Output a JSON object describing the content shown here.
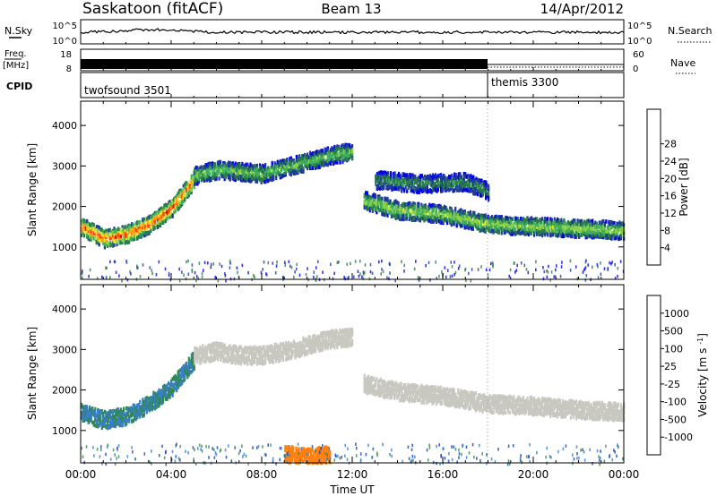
{
  "header": {
    "station": "Saskatoon (fitACF)",
    "beam": "Beam 13",
    "date": "14/Apr/2012"
  },
  "top_panels": {
    "nsky_label": "N.Sky",
    "nsky_ticks": [
      "10^5",
      "10^0"
    ],
    "nsearch_label": "N.Search",
    "nsearch_ticks": [
      "10^5",
      "10^0"
    ],
    "freq_label": "Freq.",
    "freq_unit": "[MHz]",
    "freq_ticks": [
      "18",
      "8"
    ],
    "nave_label": "Nave",
    "nave_ticks": [
      "60",
      "0"
    ],
    "cpid_label": "CPID",
    "cpid_segments": [
      {
        "name": "twofsound 3501",
        "start_h": 0,
        "end_h": 18
      },
      {
        "name": "themis 3300",
        "start_h": 18,
        "end_h": 24
      }
    ]
  },
  "chart_data": [
    {
      "type": "heatmap",
      "name": "power",
      "ylabel": "Slant Range [km]",
      "yticks": [
        1000,
        2000,
        3000,
        4000
      ],
      "ylim": [
        200,
        4600
      ],
      "xlim": [
        0,
        24
      ],
      "colorbar": {
        "label": "Power [dB]",
        "ticks": [
          "4",
          "8",
          "12",
          "16",
          "20",
          "24",
          "28"
        ],
        "colors": [
          "#0000ee",
          "#1e3a9a",
          "#2a7a4c",
          "#3cb05a",
          "#8ed04a",
          "#f5e52a",
          "#ff9c18",
          "#f54a14",
          "#dd0000"
        ]
      },
      "regions": [
        {
          "desc": "dawn band",
          "x": [
            0,
            1,
            2,
            3,
            4,
            5
          ],
          "y": [
            1550,
            1250,
            1350,
            1600,
            2000,
            2700
          ],
          "value": 26
        },
        {
          "desc": "day band",
          "x": [
            5,
            6,
            7,
            8,
            9,
            10,
            11,
            12
          ],
          "y": [
            2800,
            2950,
            2900,
            2850,
            3000,
            3150,
            3300,
            3400
          ],
          "value": 14
        },
        {
          "desc": "dusk lower band",
          "x": [
            12.5,
            14,
            16,
            18,
            20,
            22,
            24
          ],
          "y": [
            2200,
            1950,
            1850,
            1600,
            1550,
            1500,
            1450
          ],
          "value": 16
        },
        {
          "desc": "dusk upper band",
          "x": [
            13,
            15,
            17,
            18
          ],
          "y": [
            2700,
            2600,
            2650,
            2400
          ],
          "value": 10
        }
      ]
    },
    {
      "type": "heatmap",
      "name": "velocity",
      "ylabel": "Slant Range [km]",
      "xlabel": "Time UT",
      "xticks": [
        "00:00",
        "04:00",
        "08:00",
        "12:00",
        "16:00",
        "20:00",
        "00:00"
      ],
      "yticks": [
        1000,
        2000,
        3000,
        4000
      ],
      "ylim": [
        200,
        4600
      ],
      "xlim": [
        0,
        24
      ],
      "colorbar": {
        "label": "Velocity [m s^-1]",
        "ticks": [
          "1000",
          "500",
          "100",
          "25",
          "-25",
          "-100",
          "-500",
          "-1000"
        ],
        "colors": [
          "#1040b0",
          "#3a7ec8",
          "#2f8a52",
          "#58c040",
          "#c8c8c0",
          "#f5b030",
          "#ff8010",
          "#f54010",
          "#dd0000"
        ]
      },
      "regions": [
        {
          "desc": "dawn band",
          "x": [
            0,
            1,
            2,
            3,
            4,
            5
          ],
          "y": [
            1500,
            1300,
            1400,
            1700,
            2100,
            2800
          ],
          "value": 500
        },
        {
          "desc": "day band (ground scatter)",
          "x": [
            5,
            6,
            7,
            8,
            9,
            10,
            11,
            12
          ],
          "y": [
            2900,
            3000,
            2900,
            2900,
            3000,
            3150,
            3300,
            3350
          ],
          "value": 0
        },
        {
          "desc": "midday near-range",
          "x": [
            9,
            10,
            11
          ],
          "y": [
            450,
            380,
            450
          ],
          "value": -300
        },
        {
          "desc": "dusk band (ground scatter)",
          "x": [
            12.5,
            14,
            16,
            18,
            20,
            22,
            24
          ],
          "y": [
            2200,
            2000,
            1900,
            1700,
            1650,
            1550,
            1500
          ],
          "value": 0
        }
      ]
    }
  ]
}
